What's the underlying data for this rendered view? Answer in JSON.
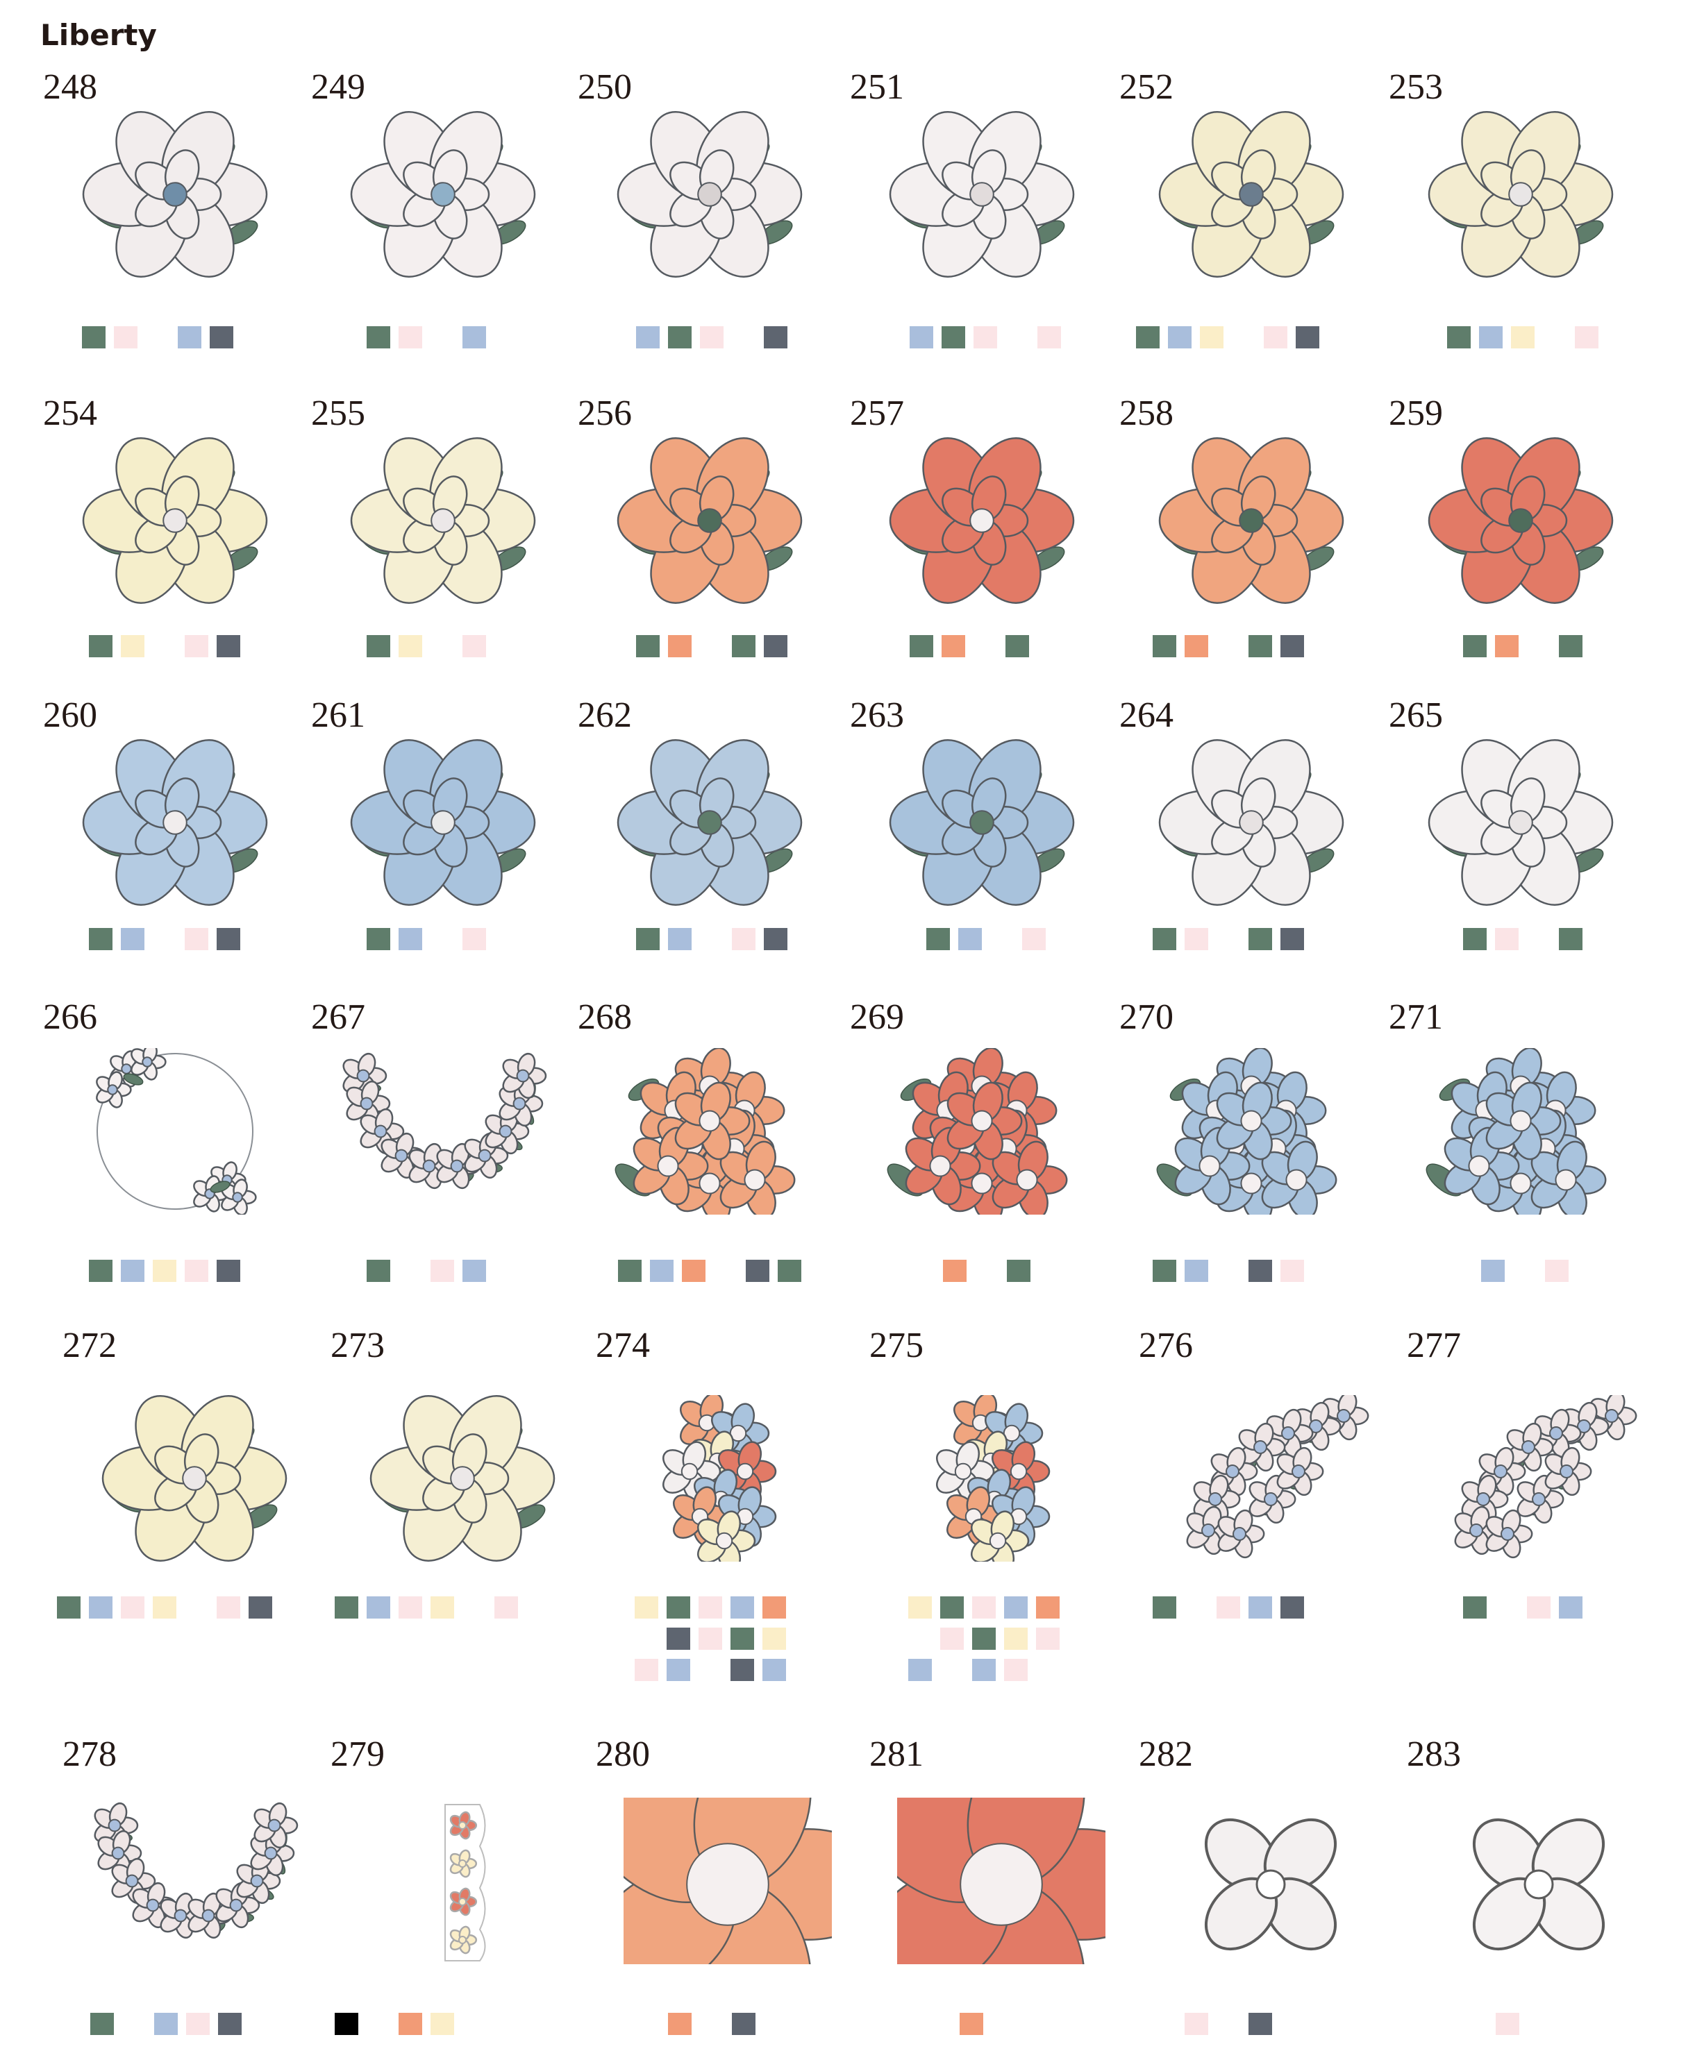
{
  "title": "Liberty",
  "colors": {
    "green": "#5f7d6b",
    "pink": "#fbe4e6",
    "blue": "#a9bedc",
    "slate": "#5e6570",
    "yellow": "#fbeec8",
    "orange": "#f29b76",
    "black": "#000000"
  },
  "designs": [
    {
      "num": "248",
      "motif": "embroidered-flower",
      "palette": {
        "petal": "#f2eded",
        "center": "#6f8ea8"
      },
      "swatches": [
        "green",
        "pink",
        null,
        "blue",
        "slate"
      ]
    },
    {
      "num": "249",
      "motif": "embroidered-flower",
      "palette": {
        "petal": "#f4efef",
        "center": "#8fb0c8"
      },
      "swatches": [
        "green",
        "pink",
        null,
        "blue"
      ]
    },
    {
      "num": "250",
      "motif": "embroidered-flower",
      "palette": {
        "petal": "#f3eeee",
        "center": "#d8d2d2"
      },
      "swatches": [
        "blue",
        "green",
        "pink",
        null,
        "slate"
      ]
    },
    {
      "num": "251",
      "motif": "embroidered-flower",
      "palette": {
        "petal": "#f4f0f0",
        "center": "#e2dcdc"
      },
      "swatches": [
        "blue",
        "green",
        "pink",
        null,
        "pink"
      ]
    },
    {
      "num": "252",
      "motif": "embroidered-flower",
      "palette": {
        "petal": "#f3eccd",
        "center": "#6b7d8e"
      },
      "swatches": [
        "green",
        "blue",
        "yellow",
        null,
        "pink",
        "slate"
      ]
    },
    {
      "num": "253",
      "motif": "embroidered-flower",
      "palette": {
        "petal": "#f3ecd0",
        "center": "#e9e6e6"
      },
      "swatches": [
        "green",
        "blue",
        "yellow",
        null,
        "pink"
      ]
    },
    {
      "num": "254",
      "motif": "embroidered-flower",
      "palette": {
        "petal": "#f5eecb",
        "center": "#ece8e8"
      },
      "swatches": [
        "green",
        "yellow",
        null,
        "pink",
        "slate"
      ]
    },
    {
      "num": "255",
      "motif": "embroidered-flower",
      "palette": {
        "petal": "#f5efd3",
        "center": "#ece8e8"
      },
      "swatches": [
        "green",
        "yellow",
        null,
        "pink"
      ]
    },
    {
      "num": "256",
      "motif": "embroidered-flower",
      "palette": {
        "petal": "#f0a57f",
        "center": "#4f6d5c"
      },
      "swatches": [
        "green",
        "orange",
        null,
        "green",
        "slate"
      ]
    },
    {
      "num": "257",
      "motif": "embroidered-flower",
      "palette": {
        "petal": "#e27a66",
        "center": "#f3efef"
      },
      "swatches": [
        "green",
        "orange",
        null,
        "green"
      ]
    },
    {
      "num": "258",
      "motif": "embroidered-flower",
      "palette": {
        "petal": "#f0a57f",
        "center": "#4f6d5c"
      },
      "swatches": [
        "green",
        "orange",
        null,
        "green",
        "slate"
      ]
    },
    {
      "num": "259",
      "motif": "embroidered-flower",
      "palette": {
        "petal": "#e27a66",
        "center": "#4f6d5c"
      },
      "swatches": [
        "green",
        "orange",
        null,
        "green"
      ]
    },
    {
      "num": "260",
      "motif": "embroidered-flower",
      "palette": {
        "petal": "#b4cbe2",
        "center": "#f1eded"
      },
      "swatches": [
        "green",
        "blue",
        null,
        "pink",
        "slate"
      ]
    },
    {
      "num": "261",
      "motif": "embroidered-flower",
      "palette": {
        "petal": "#a9c3dd",
        "center": "#eaeaea"
      },
      "swatches": [
        "green",
        "blue",
        null,
        "pink"
      ]
    },
    {
      "num": "262",
      "motif": "embroidered-flower",
      "palette": {
        "petal": "#b5cadf",
        "center": "#5f7d6b"
      },
      "swatches": [
        "green",
        "blue",
        null,
        "pink",
        "slate"
      ]
    },
    {
      "num": "263",
      "motif": "embroidered-flower",
      "palette": {
        "petal": "#a8c2dc",
        "center": "#5f7d6b"
      },
      "swatches": [
        "green",
        "blue",
        null,
        "pink"
      ]
    },
    {
      "num": "264",
      "motif": "embroidered-flower",
      "palette": {
        "petal": "#f2efef",
        "center": "#e7e2e2"
      },
      "swatches": [
        "green",
        "pink",
        null,
        "green",
        "slate"
      ]
    },
    {
      "num": "265",
      "motif": "embroidered-flower",
      "palette": {
        "petal": "#f3f0f0",
        "center": "#e9e5e5"
      },
      "swatches": [
        "green",
        "pink",
        null,
        "green"
      ]
    },
    {
      "num": "266",
      "motif": "floral-wreath",
      "palette": {
        "petal": "#f4efef",
        "center": "#a9bedc"
      },
      "swatches": [
        "green",
        "blue",
        "yellow",
        "pink",
        "slate"
      ]
    },
    {
      "num": "267",
      "motif": "floral-garland",
      "palette": {
        "petal": "#efe6e6",
        "center": "#a9bedc"
      },
      "swatches": [
        "green",
        null,
        "pink",
        "blue"
      ]
    },
    {
      "num": "268",
      "motif": "flower-cluster",
      "palette": {
        "petal": "#f0a57f",
        "center": "#f5f0f0"
      },
      "swatches": [
        "green",
        "blue",
        "orange",
        null,
        "slate",
        "green"
      ]
    },
    {
      "num": "269",
      "motif": "flower-cluster",
      "palette": {
        "petal": "#e27a66",
        "center": "#f5f0f0"
      },
      "swatches": [
        "orange",
        null,
        "green"
      ]
    },
    {
      "num": "270",
      "motif": "flower-cluster",
      "palette": {
        "petal": "#a9c3dd",
        "center": "#f5f0f0"
      },
      "swatches": [
        "green",
        "blue",
        null,
        "slate",
        "pink"
      ]
    },
    {
      "num": "271",
      "motif": "flower-cluster",
      "palette": {
        "petal": "#a9c3dd",
        "center": "#f5f0f0"
      },
      "swatches": [
        "blue",
        null,
        "pink"
      ]
    },
    {
      "num": "272",
      "motif": "embroidered-flower",
      "palette": {
        "petal": "#f5eecb",
        "center": "#ece8e8"
      },
      "swatches": [
        "green",
        "blue",
        "pink",
        "yellow",
        null,
        "pink",
        "slate"
      ]
    },
    {
      "num": "273",
      "motif": "embroidered-flower",
      "palette": {
        "petal": "#f5efd3",
        "center": "#ece8e8"
      },
      "swatches": [
        "green",
        "blue",
        "pink",
        "yellow",
        null,
        "pink"
      ]
    },
    {
      "num": "274",
      "motif": "bouquet",
      "palette": {
        "petal": "#f0a57f",
        "center": "#a9bedc"
      },
      "swatch_rows": [
        [
          "yellow",
          "green",
          "pink",
          "blue",
          "orange"
        ],
        [
          null,
          "slate",
          "pink",
          "green",
          "yellow"
        ],
        [
          "pink",
          "blue",
          null,
          "slate",
          "blue"
        ]
      ]
    },
    {
      "num": "275",
      "motif": "bouquet",
      "palette": {
        "petal": "#f0a57f",
        "center": "#a9bedc"
      },
      "swatch_rows": [
        [
          "yellow",
          "green",
          "pink",
          "blue",
          "orange"
        ],
        [
          null,
          "pink",
          "green",
          "yellow",
          "pink"
        ],
        [
          "blue",
          null,
          "blue",
          "pink"
        ]
      ]
    },
    {
      "num": "276",
      "motif": "corner-spray",
      "palette": {
        "petal": "#efe6e6",
        "center": "#a9bedc"
      },
      "swatches": [
        "green",
        null,
        "pink",
        "blue",
        "slate"
      ]
    },
    {
      "num": "277",
      "motif": "corner-spray",
      "palette": {
        "petal": "#efe6e6",
        "center": "#a9bedc"
      },
      "swatches": [
        "green",
        null,
        "pink",
        "blue"
      ]
    },
    {
      "num": "278",
      "motif": "floral-garland",
      "palette": {
        "petal": "#efe6e6",
        "center": "#a9bedc"
      },
      "swatches": [
        "green",
        null,
        "blue",
        "pink",
        "slate"
      ]
    },
    {
      "num": "279",
      "motif": "border-strip",
      "palette": {
        "petal": "#e27a66",
        "center": "#fbeec8"
      },
      "swatches": [
        "black",
        null,
        "orange",
        "yellow"
      ]
    },
    {
      "num": "280",
      "motif": "simple-flower",
      "palette": {
        "petal": "#f0a57f",
        "center": "#f5f0f0"
      },
      "swatches": [
        "orange",
        null,
        "slate"
      ]
    },
    {
      "num": "281",
      "motif": "simple-flower",
      "palette": {
        "petal": "#e27a66",
        "center": "#f5f0f0"
      },
      "swatches": [
        "orange"
      ]
    },
    {
      "num": "282",
      "motif": "four-petal-flower",
      "palette": {
        "petal": "#f3f0f0",
        "center": "#f3f0f0"
      },
      "swatches": [
        "pink",
        null,
        "slate"
      ]
    },
    {
      "num": "283",
      "motif": "four-petal-flower",
      "palette": {
        "petal": "#f5f2f2",
        "center": "#f5f2f2"
      },
      "swatches": [
        "pink"
      ]
    }
  ]
}
